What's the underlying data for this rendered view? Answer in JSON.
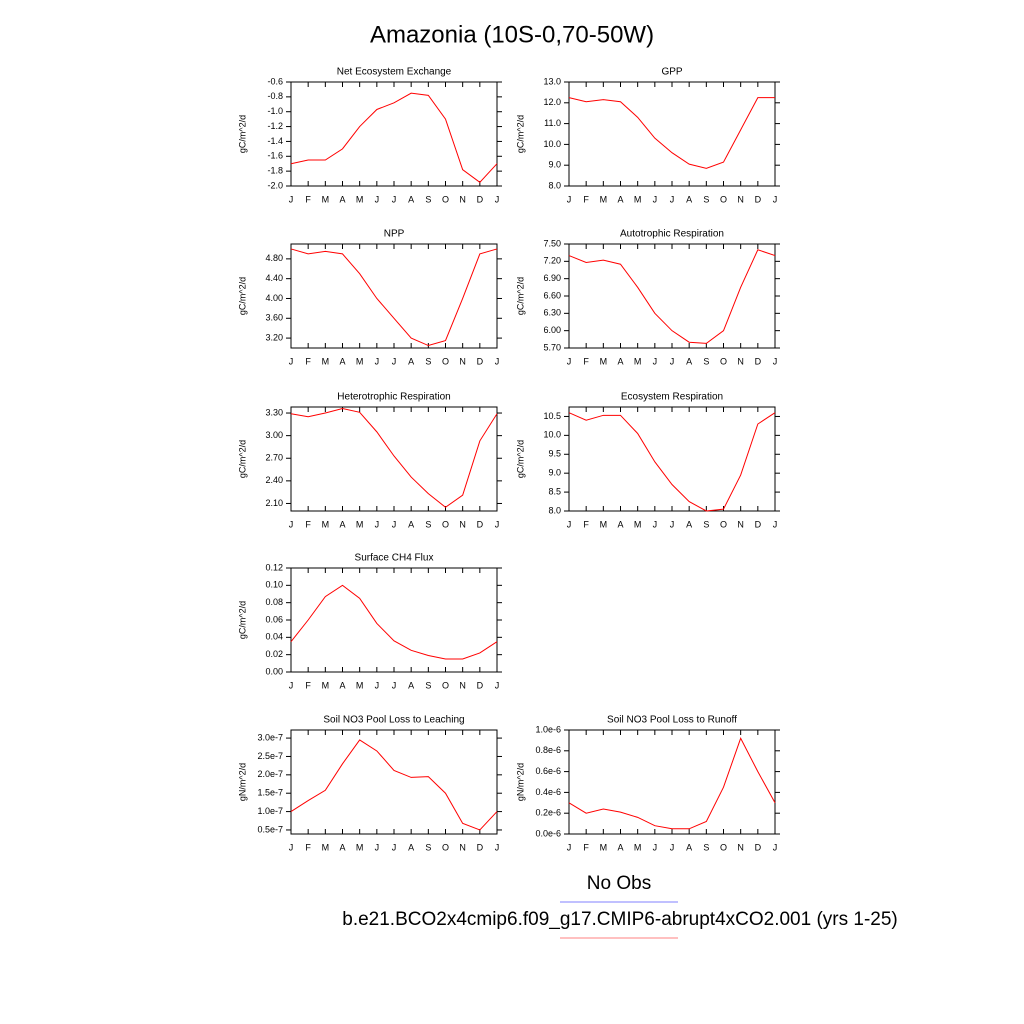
{
  "title": "Amazonia (10S-0,70-50W)",
  "legend": [
    {
      "name": "No Obs",
      "color": "#8080ff"
    },
    {
      "name": "b.e21.BCO2x4cmip6.f09_g17.CMIP6-abrupt4xCO2.001 (yrs 1-25)",
      "color": "#ff8080"
    }
  ],
  "chart_data": [
    {
      "type": "line",
      "title": "Net Ecosystem Exchange",
      "ylabel": "gC/m^2/d",
      "color": "#ff0000",
      "categories": [
        "J",
        "F",
        "M",
        "A",
        "M",
        "J",
        "J",
        "A",
        "S",
        "O",
        "N",
        "D",
        "J"
      ],
      "values": [
        -1.7,
        -1.65,
        -1.65,
        -1.5,
        -1.2,
        -0.97,
        -0.88,
        -0.75,
        -0.78,
        -1.1,
        -1.78,
        -1.95,
        -1.7
      ],
      "ylim": [
        -2.0,
        -0.6
      ],
      "yticks": [
        {
          "value": -2,
          "label": "-2.0"
        },
        -1.8,
        -1.6,
        -1.4,
        -1.2,
        {
          "value": -1,
          "label": "-1.0"
        },
        -0.8,
        -0.6
      ]
    },
    {
      "type": "line",
      "title": "GPP",
      "ylabel": "gC/m^2/d",
      "color": "#ff0000",
      "categories": [
        "J",
        "F",
        "M",
        "A",
        "M",
        "J",
        "J",
        "A",
        "S",
        "O",
        "N",
        "D",
        "J"
      ],
      "values": [
        12.25,
        12.05,
        12.15,
        12.05,
        11.3,
        10.3,
        9.6,
        9.05,
        8.85,
        9.15,
        10.7,
        12.25,
        12.25
      ],
      "ylim": [
        8,
        13
      ],
      "yticks": [
        {
          "value": 8,
          "label": "8.0"
        },
        {
          "value": 9,
          "label": "9.0"
        },
        {
          "value": 10,
          "label": "10.0"
        },
        {
          "value": 11,
          "label": "11.0"
        },
        {
          "value": 12,
          "label": "12.0"
        },
        {
          "value": 13,
          "label": "13.0"
        }
      ]
    },
    {
      "type": "line",
      "title": "NPP",
      "ylabel": "gC/m^2/d",
      "color": "#ff0000",
      "categories": [
        "J",
        "F",
        "M",
        "A",
        "M",
        "J",
        "J",
        "A",
        "S",
        "O",
        "N",
        "D",
        "J"
      ],
      "values": [
        5.0,
        4.9,
        4.95,
        4.9,
        4.5,
        4.0,
        3.6,
        3.2,
        3.05,
        3.15,
        4.0,
        4.9,
        5.0
      ],
      "ylim": [
        3.0,
        5.1
      ],
      "yticks": [
        {
          "value": 3.2,
          "label": "3.20"
        },
        {
          "value": 3.6,
          "label": "3.60"
        },
        {
          "value": 4,
          "label": "4.00"
        },
        {
          "value": 4.4,
          "label": "4.40"
        },
        {
          "value": 4.8,
          "label": "4.80"
        }
      ]
    },
    {
      "type": "line",
      "title": "Autotrophic Respiration",
      "ylabel": "gC/m^2/d",
      "color": "#ff0000",
      "categories": [
        "J",
        "F",
        "M",
        "A",
        "M",
        "J",
        "J",
        "A",
        "S",
        "O",
        "N",
        "D",
        "J"
      ],
      "values": [
        7.3,
        7.18,
        7.22,
        7.15,
        6.75,
        6.3,
        6.0,
        5.8,
        5.78,
        6.0,
        6.75,
        7.4,
        7.3
      ],
      "ylim": [
        5.7,
        7.5
      ],
      "yticks": [
        {
          "value": 5.7,
          "label": "5.70"
        },
        {
          "value": 6,
          "label": "6.00"
        },
        {
          "value": 6.3,
          "label": "6.30"
        },
        {
          "value": 6.6,
          "label": "6.60"
        },
        {
          "value": 6.9,
          "label": "6.90"
        },
        {
          "value": 7.2,
          "label": "7.20"
        },
        {
          "value": 7.5,
          "label": "7.50"
        }
      ]
    },
    {
      "type": "line",
      "title": "Heterotrophic Respiration",
      "ylabel": "gC/m^2/d",
      "color": "#ff0000",
      "categories": [
        "J",
        "F",
        "M",
        "A",
        "M",
        "J",
        "J",
        "A",
        "S",
        "O",
        "N",
        "D",
        "J"
      ],
      "values": [
        3.29,
        3.25,
        3.3,
        3.36,
        3.31,
        3.05,
        2.73,
        2.45,
        2.23,
        2.05,
        2.21,
        2.93,
        3.29
      ],
      "ylim": [
        2.0,
        3.38
      ],
      "yticks": [
        {
          "value": 2.1,
          "label": "2.10"
        },
        {
          "value": 2.4,
          "label": "2.40"
        },
        {
          "value": 2.7,
          "label": "2.70"
        },
        {
          "value": 3,
          "label": "3.00"
        },
        {
          "value": 3.3,
          "label": "3.30"
        }
      ]
    },
    {
      "type": "line",
      "title": "Ecosystem Respiration",
      "ylabel": "gC/m^2/d",
      "color": "#ff0000",
      "categories": [
        "J",
        "F",
        "M",
        "A",
        "M",
        "J",
        "J",
        "A",
        "S",
        "O",
        "N",
        "D",
        "J"
      ],
      "values": [
        10.6,
        10.4,
        10.53,
        10.53,
        10.05,
        9.3,
        8.7,
        8.25,
        8.0,
        8.05,
        8.95,
        10.3,
        10.6
      ],
      "ylim": [
        8.0,
        10.75
      ],
      "yticks": [
        {
          "value": 8,
          "label": "8.0"
        },
        8.5,
        {
          "value": 9,
          "label": "9.0"
        },
        9.5,
        {
          "value": 10,
          "label": "10.0"
        },
        10.5
      ]
    },
    {
      "type": "line",
      "title": "Surface CH4 Flux",
      "ylabel": "gC/m^2/d",
      "color": "#ff0000",
      "categories": [
        "J",
        "F",
        "M",
        "A",
        "M",
        "J",
        "J",
        "A",
        "S",
        "O",
        "N",
        "D",
        "J"
      ],
      "values": [
        0.035,
        0.06,
        0.087,
        0.1,
        0.085,
        0.056,
        0.036,
        0.025,
        0.019,
        0.015,
        0.015,
        0.022,
        0.035
      ],
      "ylim": [
        0,
        0.12
      ],
      "yticks": [
        {
          "value": 0,
          "label": "0.00"
        },
        0.02,
        0.04,
        0.06,
        0.08,
        {
          "value": 0.1,
          "label": "0.10"
        },
        0.12
      ]
    },
    null,
    {
      "type": "line",
      "title": "Soil NO3 Pool Loss to Leaching",
      "ylabel": "gN/m^2/d",
      "color": "#ff0000",
      "categories": [
        "J",
        "F",
        "M",
        "A",
        "M",
        "J",
        "J",
        "A",
        "S",
        "O",
        "N",
        "D",
        "J"
      ],
      "values": [
        1e-07,
        1.3e-07,
        1.58e-07,
        2.3e-07,
        2.95e-07,
        2.65e-07,
        2.12e-07,
        1.93e-07,
        1.95e-07,
        1.5e-07,
        6.8e-08,
        5e-08,
        1e-07
      ],
      "ylim": [
        3.9e-08,
        3.22e-07
      ],
      "yticks": [
        {
          "value": 5e-08,
          "label": "0.5e-7"
        },
        {
          "value": 1e-07,
          "label": "1.0e-7"
        },
        {
          "value": 1.5e-07,
          "label": "1.5e-7"
        },
        {
          "value": 2e-07,
          "label": "2.0e-7"
        },
        {
          "value": 2.5e-07,
          "label": "2.5e-7"
        },
        {
          "value": 3e-07,
          "label": "3.0e-7"
        }
      ]
    },
    {
      "type": "line",
      "title": "Soil NO3 Pool Loss to Runoff",
      "ylabel": "gN/m^2/d",
      "color": "#ff0000",
      "categories": [
        "J",
        "F",
        "M",
        "A",
        "M",
        "J",
        "J",
        "A",
        "S",
        "O",
        "N",
        "D",
        "J"
      ],
      "values": [
        3e-07,
        2e-07,
        2.4e-07,
        2.1e-07,
        1.6e-07,
        8e-08,
        5e-08,
        5e-08,
        1.2e-07,
        4.5e-07,
        9.2e-07,
        6e-07,
        3e-07
      ],
      "ylim": [
        0,
        1e-06
      ],
      "yticks": [
        {
          "value": 0,
          "label": "0.0e-6"
        },
        {
          "value": 2e-07,
          "label": "0.2e-6"
        },
        {
          "value": 4e-07,
          "label": "0.4e-6"
        },
        {
          "value": 6e-07,
          "label": "0.6e-6"
        },
        {
          "value": 8e-07,
          "label": "0.8e-6"
        },
        {
          "value": 1e-06,
          "label": "1.0e-6"
        }
      ]
    }
  ]
}
